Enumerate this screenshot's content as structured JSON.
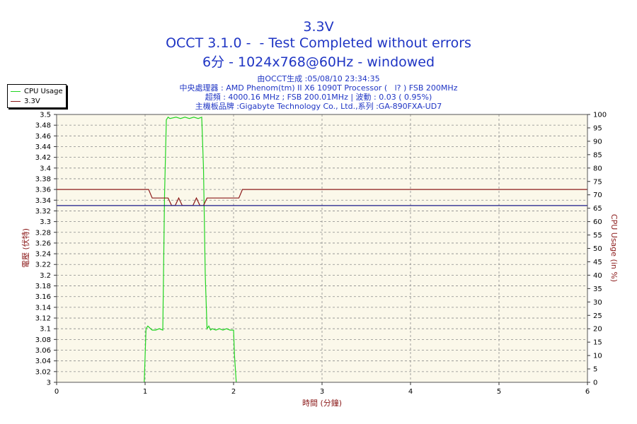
{
  "title": "3.3V",
  "subtitle1": "OCCT 3.1.0 -  - Test Completed without errors",
  "subtitle2": "6分 - 1024x768@60Hz - windowed",
  "info": {
    "line1": "由OCCT生成 :05/08/10 23:34:35",
    "line2": "中央處理器 : AMD Phenom(tm) II X6 1090T Processor (   l? ) FSB 200MHz",
    "line3": "超頻 : 4000.16 MHz ; FSB 200.01MHz | 波動 : 0.03 ( 0.95%)",
    "line4": "主機板品牌 :Gigabyte Technology Co., Ltd.,系列 :GA-890FXA-UD7"
  },
  "colors": {
    "cpu": "#22d422",
    "voltage": "#8b1a1a",
    "ref": "#1a1a8b",
    "title": "#1f35c4",
    "plot_bg": "#fbf8ea",
    "axis_label": "#8b1a1a"
  },
  "chart_data": {
    "type": "line",
    "xlabel": "時間 (分鐘)",
    "ylabel_left": "電壓 (伏特)",
    "ylabel_right": "CPU Usage (in %)",
    "xlim": [
      0,
      6
    ],
    "ylim_left": [
      3.0,
      3.5
    ],
    "ylim_right": [
      0,
      100
    ],
    "x_ticks": [
      "0",
      "1",
      "2",
      "3",
      "4",
      "5",
      "6"
    ],
    "y_left_ticks": [
      "3",
      "3.02",
      "3.04",
      "3.06",
      "3.08",
      "3.1",
      "3.12",
      "3.14",
      "3.16",
      "3.18",
      "3.2",
      "3.22",
      "3.24",
      "3.26",
      "3.28",
      "3.3",
      "3.32",
      "3.34",
      "3.36",
      "3.38",
      "3.4",
      "3.42",
      "3.44",
      "3.46",
      "3.48",
      "3.5"
    ],
    "y_right_ticks": [
      "0",
      "5",
      "10",
      "15",
      "20",
      "25",
      "30",
      "35",
      "40",
      "45",
      "50",
      "55",
      "60",
      "65",
      "70",
      "75",
      "80",
      "85",
      "90",
      "95",
      "100"
    ],
    "grid": true,
    "legend_position": "top-left",
    "series": [
      {
        "name": "CPU Usage",
        "axis": "right",
        "x": [
          0.99,
          1.01,
          1.03,
          1.08,
          1.12,
          1.16,
          1.2,
          1.22,
          1.24,
          1.26,
          1.28,
          1.35,
          1.4,
          1.45,
          1.5,
          1.55,
          1.6,
          1.64,
          1.66,
          1.68,
          1.7,
          1.72,
          1.74,
          1.76,
          1.8,
          1.84,
          1.88,
          1.92,
          1.96,
          2.0,
          2.01,
          2.03
        ],
        "y": [
          0,
          20,
          21,
          19.5,
          19.5,
          20,
          19.5,
          70,
          98,
          99,
          98.5,
          99,
          98.5,
          99,
          98.5,
          99,
          98.5,
          99,
          80,
          40,
          20,
          21,
          19.5,
          20,
          19.5,
          20,
          19.5,
          20,
          19.5,
          19.5,
          10,
          0
        ]
      },
      {
        "name": "3.3V",
        "axis": "left",
        "x": [
          0,
          1.0,
          1.04,
          1.08,
          1.2,
          1.26,
          1.3,
          1.34,
          1.38,
          1.42,
          1.46,
          1.5,
          1.54,
          1.58,
          1.62,
          1.66,
          1.7,
          1.74,
          1.9,
          2.06,
          2.1,
          6
        ],
        "y": [
          3.36,
          3.36,
          3.36,
          3.344,
          3.344,
          3.344,
          3.33,
          3.33,
          3.344,
          3.33,
          3.33,
          3.33,
          3.33,
          3.344,
          3.33,
          3.33,
          3.344,
          3.344,
          3.344,
          3.344,
          3.36,
          3.36
        ]
      },
      {
        "name": "",
        "axis": "left",
        "x": [
          0,
          6
        ],
        "y": [
          3.33,
          3.33
        ]
      }
    ]
  }
}
